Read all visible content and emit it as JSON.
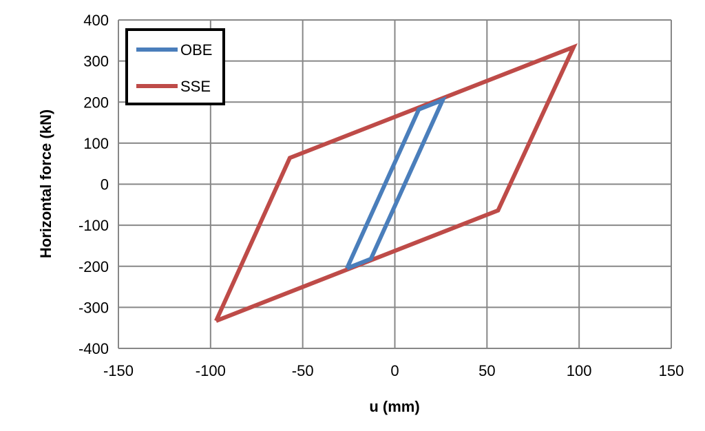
{
  "chart_data": {
    "type": "line",
    "title": "",
    "xlabel": "u (mm)",
    "ylabel": "Horizontal force (kN)",
    "xlim": [
      -150,
      150
    ],
    "ylim": [
      -400,
      400
    ],
    "xticks": [
      -150,
      -100,
      -50,
      0,
      50,
      100,
      150
    ],
    "yticks": [
      -400,
      -300,
      -200,
      -100,
      0,
      100,
      200,
      300,
      400
    ],
    "grid": true,
    "legend": "top-left",
    "series": [
      {
        "name": "OBE",
        "color": "#4a7ebb",
        "x": [
          -26,
          13,
          26,
          -13,
          -26
        ],
        "y": [
          -205,
          182,
          205,
          -182,
          -205
        ]
      },
      {
        "name": "SSE",
        "color": "#be4b48",
        "x": [
          -97,
          -57,
          97,
          56,
          -97
        ],
        "y": [
          -333,
          64,
          334,
          -64,
          -333
        ]
      }
    ]
  }
}
